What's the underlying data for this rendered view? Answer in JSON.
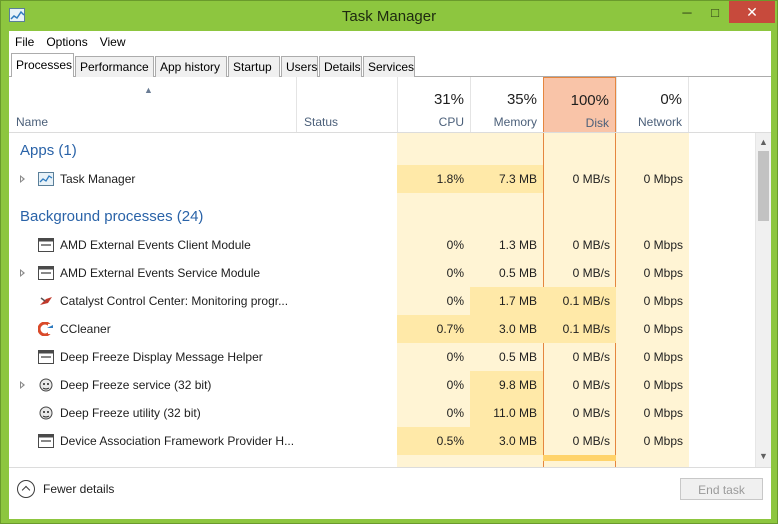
{
  "window": {
    "title": "Task Manager",
    "minimize": "─",
    "maximize": "□",
    "close": "✕"
  },
  "menu": [
    "File",
    "Options",
    "View"
  ],
  "tabs": [
    "Processes",
    "Performance",
    "App history",
    "Startup",
    "Users",
    "Details",
    "Services"
  ],
  "header": {
    "name": "Name",
    "status": "Status",
    "cpu": {
      "pct": "31%",
      "label": "CPU"
    },
    "memory": {
      "pct": "35%",
      "label": "Memory"
    },
    "disk": {
      "pct": "100%",
      "label": "Disk"
    },
    "network": {
      "pct": "0%",
      "label": "Network"
    }
  },
  "groups": {
    "apps": "Apps (1)",
    "background": "Background processes (24)"
  },
  "rows": [
    {
      "name": "Task Manager",
      "cpu": "1.8%",
      "mem": "7.3 MB",
      "disk": "0 MB/s",
      "net": "0 Mbps",
      "icon": "task-manager-icon"
    },
    {
      "name": "AMD External Events Client Module",
      "cpu": "0%",
      "mem": "1.3 MB",
      "disk": "0 MB/s",
      "net": "0 Mbps",
      "icon": "window-app-icon"
    },
    {
      "name": "AMD External Events Service Module",
      "cpu": "0%",
      "mem": "0.5 MB",
      "disk": "0 MB/s",
      "net": "0 Mbps",
      "icon": "window-app-icon"
    },
    {
      "name": "Catalyst Control Center: Monitoring progr...",
      "cpu": "0%",
      "mem": "1.7 MB",
      "disk": "0.1 MB/s",
      "net": "0 Mbps",
      "icon": "catalyst-icon"
    },
    {
      "name": "CCleaner",
      "cpu": "0.7%",
      "mem": "3.0 MB",
      "disk": "0.1 MB/s",
      "net": "0 Mbps",
      "icon": "ccleaner-icon"
    },
    {
      "name": "Deep Freeze Display Message Helper",
      "cpu": "0%",
      "mem": "0.5 MB",
      "disk": "0 MB/s",
      "net": "0 Mbps",
      "icon": "window-app-icon"
    },
    {
      "name": "Deep Freeze service (32 bit)",
      "cpu": "0%",
      "mem": "9.8 MB",
      "disk": "0 MB/s",
      "net": "0 Mbps",
      "icon": "deep-freeze-icon"
    },
    {
      "name": "Deep Freeze utility (32 bit)",
      "cpu": "0%",
      "mem": "11.0 MB",
      "disk": "0 MB/s",
      "net": "0 Mbps",
      "icon": "deep-freeze-icon"
    },
    {
      "name": "Device Association Framework Provider H...",
      "cpu": "0.5%",
      "mem": "3.0 MB",
      "disk": "0 MB/s",
      "net": "0 Mbps",
      "icon": "window-app-icon"
    }
  ],
  "footer": {
    "fewer": "Fewer details",
    "end_task": "End task"
  },
  "colors": {
    "heat_light": "#fff4d4",
    "heat_mid": "#ffe9a8",
    "disk_accent": "#e5863f",
    "group": "#2a63a8"
  }
}
